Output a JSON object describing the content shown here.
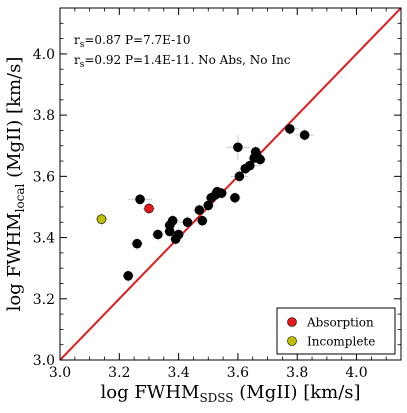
{
  "chart_data": {
    "type": "scatter",
    "xlabel_main": "log FWHM",
    "xlabel_sub": "SDSS",
    "xlabel_tail": " (MgII) [km/s]",
    "ylabel_main": "log FWHM",
    "ylabel_sub": "local",
    "ylabel_tail": " (MgII) [km/s]",
    "xlim": [
      3.0,
      4.15
    ],
    "ylim": [
      3.0,
      4.15
    ],
    "xticks": [
      "3.0",
      "3.2",
      "3.4",
      "3.6",
      "3.8",
      "4.0"
    ],
    "yticks": [
      "3.0",
      "3.2",
      "3.4",
      "3.6",
      "3.8",
      "4.0"
    ],
    "grid": false,
    "annotations": [
      {
        "prefix": "r",
        "sub": "s",
        "rest": "=0.87 P=7.7E-10"
      },
      {
        "prefix": "r",
        "sub": "s",
        "rest": "=0.92 P=1.4E-11. No Abs, No Inc"
      }
    ],
    "one_to_one_line": {
      "from": [
        3.0,
        3.0
      ],
      "to": [
        4.15,
        4.15
      ],
      "color": "#e31a1c"
    },
    "legend": {
      "placement": "bottom-right",
      "entries": [
        {
          "label": "Absorption",
          "color": "#e31a1c"
        },
        {
          "label": "Incomplete",
          "color": "#bfbf00"
        }
      ]
    },
    "series": [
      {
        "color": "#000000",
        "points": [
          {
            "x": 3.23,
            "y": 3.275,
            "xerr": 0.02,
            "yerr": 0.02
          },
          {
            "x": 3.26,
            "y": 3.38,
            "xerr": 0.02,
            "yerr": 0.02
          },
          {
            "x": 3.27,
            "y": 3.525,
            "xerr": 0.04,
            "yerr": 0.02
          },
          {
            "x": 3.33,
            "y": 3.41,
            "xerr": 0.02,
            "yerr": 0.02
          },
          {
            "x": 3.37,
            "y": 3.44,
            "xerr": 0.02,
            "yerr": 0.02
          },
          {
            "x": 3.37,
            "y": 3.42,
            "xerr": 0.02,
            "yerr": 0.02
          },
          {
            "x": 3.38,
            "y": 3.455,
            "xerr": 0.02,
            "yerr": 0.02
          },
          {
            "x": 3.39,
            "y": 3.395,
            "xerr": 0.02,
            "yerr": 0.02
          },
          {
            "x": 3.4,
            "y": 3.41,
            "xerr": 0.02,
            "yerr": 0.02
          },
          {
            "x": 3.43,
            "y": 3.45,
            "xerr": 0.03,
            "yerr": 0.02
          },
          {
            "x": 3.47,
            "y": 3.49,
            "xerr": 0.02,
            "yerr": 0.02
          },
          {
            "x": 3.48,
            "y": 3.455,
            "xerr": 0.02,
            "yerr": 0.02
          },
          {
            "x": 3.5,
            "y": 3.505,
            "xerr": 0.02,
            "yerr": 0.02
          },
          {
            "x": 3.51,
            "y": 3.53,
            "xerr": 0.02,
            "yerr": 0.02
          },
          {
            "x": 3.525,
            "y": 3.54,
            "xerr": 0.02,
            "yerr": 0.02
          },
          {
            "x": 3.53,
            "y": 3.55,
            "xerr": 0.02,
            "yerr": 0.02
          },
          {
            "x": 3.545,
            "y": 3.545,
            "xerr": 0.02,
            "yerr": 0.02
          },
          {
            "x": 3.59,
            "y": 3.53,
            "xerr": 0.02,
            "yerr": 0.02
          },
          {
            "x": 3.6,
            "y": 3.695,
            "xerr": 0.04,
            "yerr": 0.04
          },
          {
            "x": 3.605,
            "y": 3.6,
            "xerr": 0.03,
            "yerr": 0.02
          },
          {
            "x": 3.625,
            "y": 3.625,
            "xerr": 0.02,
            "yerr": 0.02
          },
          {
            "x": 3.64,
            "y": 3.635,
            "xerr": 0.03,
            "yerr": 0.02
          },
          {
            "x": 3.655,
            "y": 3.66,
            "xerr": 0.02,
            "yerr": 0.02
          },
          {
            "x": 3.66,
            "y": 3.68,
            "xerr": 0.02,
            "yerr": 0.02
          },
          {
            "x": 3.665,
            "y": 3.665,
            "xerr": 0.02,
            "yerr": 0.02
          },
          {
            "x": 3.675,
            "y": 3.655,
            "xerr": 0.02,
            "yerr": 0.02
          },
          {
            "x": 3.775,
            "y": 3.755,
            "xerr": 0.03,
            "yerr": 0.02
          },
          {
            "x": 3.825,
            "y": 3.735,
            "xerr": 0.03,
            "yerr": 0.02
          }
        ]
      },
      {
        "color": "#e31a1c",
        "points": [
          {
            "x": 3.3,
            "y": 3.495,
            "xerr": 0.02,
            "yerr": 0.02
          }
        ]
      },
      {
        "color": "#bfbf00",
        "points": [
          {
            "x": 3.14,
            "y": 3.46,
            "xerr": 0.02,
            "yerr": 0.02
          }
        ]
      }
    ]
  }
}
